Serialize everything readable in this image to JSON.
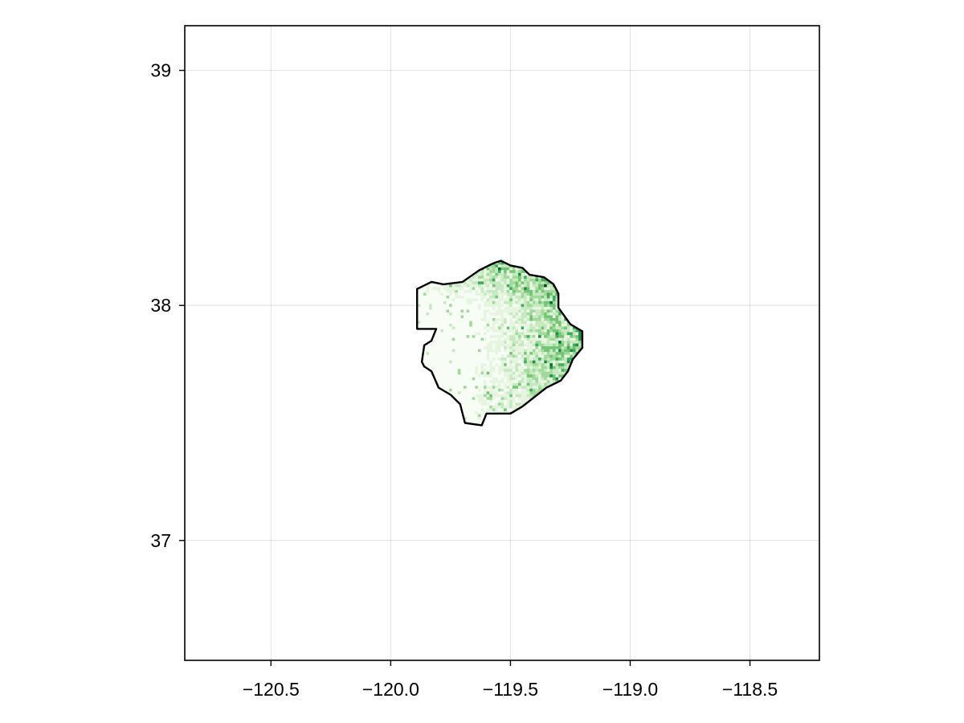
{
  "chart_data": {
    "type": "heatmap",
    "title": "",
    "xlabel": "",
    "ylabel": "",
    "xlim": [
      -120.86,
      -118.21
    ],
    "ylim": [
      36.49,
      39.19
    ],
    "grid": true,
    "x_ticks": [
      {
        "value": -120.5,
        "label": "−120.5"
      },
      {
        "value": -120.0,
        "label": "−120.0"
      },
      {
        "value": -119.5,
        "label": "−119.5"
      },
      {
        "value": -119.0,
        "label": "−119.0"
      },
      {
        "value": -118.5,
        "label": "−118.5"
      }
    ],
    "y_ticks": [
      {
        "value": 39,
        "label": "39"
      },
      {
        "value": 38,
        "label": "38"
      },
      {
        "value": 37,
        "label": "37"
      }
    ],
    "colormap": [
      "#f7fcf5",
      "#e5f5e0",
      "#c7e9c0",
      "#a1d99b",
      "#74c476",
      "#41ab5d",
      "#238b45",
      "#006d2c",
      "#00441b"
    ],
    "raster_value_range": [
      0,
      1
    ],
    "boundary": [
      [
        -119.89,
        38.0
      ],
      [
        -119.89,
        38.07
      ],
      [
        -119.83,
        38.1
      ],
      [
        -119.78,
        38.09
      ],
      [
        -119.7,
        38.1
      ],
      [
        -119.63,
        38.15
      ],
      [
        -119.57,
        38.18
      ],
      [
        -119.54,
        38.19
      ],
      [
        -119.5,
        38.17
      ],
      [
        -119.45,
        38.16
      ],
      [
        -119.42,
        38.13
      ],
      [
        -119.36,
        38.12
      ],
      [
        -119.32,
        38.09
      ],
      [
        -119.3,
        38.05
      ],
      [
        -119.3,
        37.99
      ],
      [
        -119.25,
        37.92
      ],
      [
        -119.2,
        37.89
      ],
      [
        -119.2,
        37.82
      ],
      [
        -119.24,
        37.77
      ],
      [
        -119.26,
        37.72
      ],
      [
        -119.29,
        37.68
      ],
      [
        -119.35,
        37.65
      ],
      [
        -119.4,
        37.61
      ],
      [
        -119.45,
        37.57
      ],
      [
        -119.5,
        37.54
      ],
      [
        -119.6,
        37.54
      ],
      [
        -119.62,
        37.49
      ],
      [
        -119.69,
        37.5
      ],
      [
        -119.71,
        37.58
      ],
      [
        -119.75,
        37.62
      ],
      [
        -119.8,
        37.65
      ],
      [
        -119.83,
        37.72
      ],
      [
        -119.86,
        37.74
      ],
      [
        -119.87,
        37.76
      ],
      [
        -119.86,
        37.83
      ],
      [
        -119.83,
        37.85
      ],
      [
        -119.81,
        37.9
      ],
      [
        -119.89,
        37.9
      ],
      [
        -119.89,
        38.0
      ]
    ]
  }
}
